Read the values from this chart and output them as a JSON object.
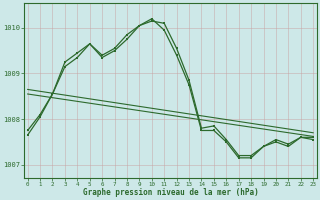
{
  "line1_x": [
    0,
    1,
    2,
    3,
    4,
    5,
    6,
    7,
    8,
    9,
    10,
    11,
    12,
    13,
    14,
    15,
    16,
    17,
    18,
    19,
    20,
    21,
    22,
    23
  ],
  "line1_y": [
    1007.65,
    1008.05,
    1008.55,
    1009.15,
    1009.35,
    1009.65,
    1009.35,
    1009.5,
    1009.75,
    1010.05,
    1010.2,
    1009.95,
    1009.4,
    1008.75,
    1007.75,
    1007.75,
    1007.5,
    1007.15,
    1007.15,
    1007.4,
    1007.5,
    1007.4,
    1007.6,
    1007.55
  ],
  "line2_x": [
    0,
    1,
    2,
    3,
    4,
    5,
    6,
    7,
    8,
    9,
    10,
    11,
    12,
    13,
    14,
    15,
    16,
    17,
    18,
    19,
    20,
    21,
    22,
    23
  ],
  "line2_y": [
    1007.75,
    1008.1,
    1008.55,
    1009.25,
    1009.45,
    1009.65,
    1009.4,
    1009.55,
    1009.85,
    1010.05,
    1010.15,
    1010.1,
    1009.55,
    1008.85,
    1007.8,
    1007.85,
    1007.55,
    1007.2,
    1007.2,
    1007.4,
    1007.55,
    1007.45,
    1007.6,
    1007.6
  ],
  "trend1_x": [
    0,
    23
  ],
  "trend1_y": [
    1008.65,
    1007.7
  ],
  "trend2_x": [
    0,
    23
  ],
  "trend2_y": [
    1008.55,
    1007.62
  ],
  "line_color": "#2d6a2d",
  "bg_color": "#cde8e8",
  "grid_color": "#b0c8c8",
  "xlabel": "Graphe pression niveau de la mer (hPa)",
  "ylim": [
    1006.7,
    1010.55
  ],
  "xlim": [
    -0.3,
    23.3
  ],
  "yticks": [
    1007,
    1008,
    1009,
    1010
  ],
  "xticks": [
    0,
    1,
    2,
    3,
    4,
    5,
    6,
    7,
    8,
    9,
    10,
    11,
    12,
    13,
    14,
    15,
    16,
    17,
    18,
    19,
    20,
    21,
    22,
    23
  ]
}
